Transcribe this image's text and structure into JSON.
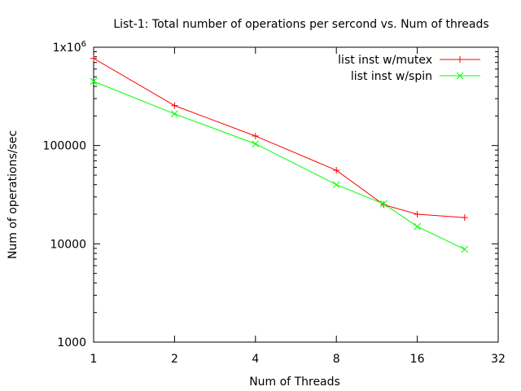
{
  "chart_data": {
    "type": "line",
    "title": "List-1: Total number of operations per sercond vs. Num of threads",
    "xlabel": "Num of Threads",
    "ylabel": "Num of operations/sec",
    "x_scale": "log2",
    "y_scale": "log10",
    "xlim": [
      1,
      32
    ],
    "ylim": [
      1000,
      1000000
    ],
    "x_ticks": [
      {
        "value": 1,
        "label": "1"
      },
      {
        "value": 2,
        "label": "2"
      },
      {
        "value": 4,
        "label": "4"
      },
      {
        "value": 8,
        "label": "8"
      },
      {
        "value": 16,
        "label": "16"
      },
      {
        "value": 32,
        "label": "32"
      }
    ],
    "y_ticks": [
      {
        "value": 1000,
        "label": "1000"
      },
      {
        "value": 10000,
        "label": "10000"
      },
      {
        "value": 100000,
        "label": "100000"
      },
      {
        "value": 1000000,
        "label": "1x10",
        "sup": "6"
      }
    ],
    "grid": false,
    "legend_position": "top-right",
    "series": [
      {
        "name": "list inst w/mutex",
        "color": "#ff0000",
        "marker": "plus",
        "x": [
          1,
          2,
          4,
          8,
          12,
          16,
          24
        ],
        "y": [
          770000,
          255000,
          125000,
          56000,
          25000,
          20000,
          18500
        ]
      },
      {
        "name": "list inst w/spin",
        "color": "#00ff00",
        "marker": "cross",
        "x": [
          1,
          2,
          4,
          8,
          12,
          16,
          24
        ],
        "y": [
          450000,
          210000,
          104000,
          40000,
          25500,
          15000,
          8800
        ]
      }
    ]
  }
}
